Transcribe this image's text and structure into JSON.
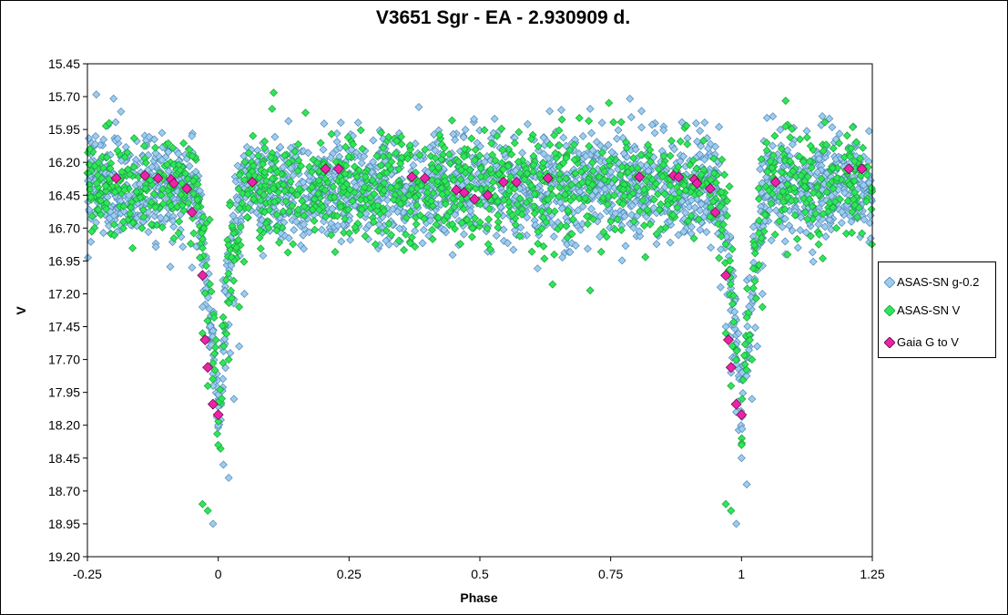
{
  "chart_data": {
    "type": "scatter",
    "title": "V3651 Sgr - EA - 2.930909 d.",
    "xlabel": "Phase",
    "ylabel": "V",
    "xlim": [
      -0.25,
      1.25
    ],
    "ylim": [
      15.45,
      19.2
    ],
    "y_inverted": true,
    "x_ticks": [
      "-0.25",
      "0",
      "0.25",
      "0.5",
      "0.75",
      "1",
      "1.25"
    ],
    "y_ticks": [
      "15.45",
      "15.70",
      "15.95",
      "16.20",
      "16.45",
      "16.70",
      "16.95",
      "17.20",
      "17.45",
      "17.70",
      "17.95",
      "18.20",
      "18.45",
      "18.70",
      "18.95",
      "19.20"
    ],
    "grid": false,
    "legend_position": "right",
    "period_days": 2.930909,
    "model": {
      "out_of_eclipse_mag": 16.38,
      "primary_min_phase": 0,
      "primary_min_mag": 18.1,
      "eclipse_half_width_phase": 0.05,
      "scatter_mag": 0.2
    },
    "series": [
      {
        "name": "ASAS-SN g-0.2",
        "marker": "diamond",
        "color": "#9DCDEE",
        "edge": "#4F86B5",
        "approx_points": 2400,
        "eclipse_points": [
          [
            -0.05,
            17.0
          ],
          [
            -0.03,
            17.3
          ],
          [
            -0.02,
            17.55
          ],
          [
            -0.01,
            17.9
          ],
          [
            0.0,
            18.2
          ],
          [
            0.01,
            18.5
          ],
          [
            0.02,
            18.6
          ],
          [
            -0.01,
            18.95
          ],
          [
            0.03,
            18.0
          ],
          [
            0.04,
            17.6
          ],
          [
            0.05,
            17.2
          ],
          [
            0.96,
            17.15
          ],
          [
            0.97,
            17.45
          ],
          [
            0.98,
            17.8
          ],
          [
            0.99,
            18.1
          ],
          [
            1.0,
            18.45
          ],
          [
            1.01,
            18.65
          ],
          [
            0.99,
            18.95
          ],
          [
            1.02,
            18.0
          ],
          [
            1.03,
            17.6
          ],
          [
            1.04,
            17.2
          ]
        ]
      },
      {
        "name": "ASAS-SN V",
        "marker": "diamond",
        "color": "#2EE65A",
        "edge": "#1A9E3A",
        "approx_points": 1300,
        "eclipse_points": [
          [
            -0.03,
            17.5
          ],
          [
            -0.02,
            17.9
          ],
          [
            -0.03,
            18.8
          ],
          [
            -0.02,
            18.85
          ],
          [
            0.0,
            18.35
          ],
          [
            0.02,
            17.7
          ],
          [
            0.04,
            17.3
          ],
          [
            0.97,
            17.5
          ],
          [
            0.98,
            17.9
          ],
          [
            0.97,
            18.8
          ],
          [
            0.98,
            18.85
          ],
          [
            1.0,
            18.35
          ],
          [
            1.02,
            17.7
          ],
          [
            1.04,
            17.3
          ]
        ]
      },
      {
        "name": "Gaia G to V",
        "marker": "diamond",
        "color": "#EE22AA",
        "edge": "#5A0A3C",
        "points": [
          [
            -0.195,
            16.32
          ],
          [
            -0.14,
            16.3
          ],
          [
            -0.115,
            16.32
          ],
          [
            -0.09,
            16.33
          ],
          [
            -0.085,
            16.36
          ],
          [
            -0.06,
            16.4
          ],
          [
            -0.05,
            16.58
          ],
          [
            -0.03,
            17.06
          ],
          [
            -0.025,
            17.55
          ],
          [
            -0.02,
            17.76
          ],
          [
            -0.01,
            18.04
          ],
          [
            0.0,
            18.12
          ],
          [
            0.065,
            16.35
          ],
          [
            0.205,
            16.25
          ],
          [
            0.23,
            16.25
          ],
          [
            0.37,
            16.31
          ],
          [
            0.395,
            16.32
          ],
          [
            0.455,
            16.41
          ],
          [
            0.47,
            16.43
          ],
          [
            0.49,
            16.48
          ],
          [
            0.515,
            16.45
          ],
          [
            0.545,
            16.35
          ],
          [
            0.57,
            16.35
          ],
          [
            0.63,
            16.32
          ],
          [
            0.805,
            16.31
          ],
          [
            0.87,
            16.3
          ],
          [
            0.88,
            16.31
          ],
          [
            0.91,
            16.33
          ],
          [
            0.915,
            16.36
          ],
          [
            0.94,
            16.4
          ],
          [
            0.95,
            16.58
          ],
          [
            0.97,
            17.06
          ],
          [
            0.975,
            17.55
          ],
          [
            0.98,
            17.76
          ],
          [
            0.99,
            18.04
          ],
          [
            1.0,
            18.12
          ],
          [
            1.065,
            16.35
          ],
          [
            1.205,
            16.25
          ],
          [
            1.23,
            16.25
          ]
        ]
      }
    ]
  }
}
